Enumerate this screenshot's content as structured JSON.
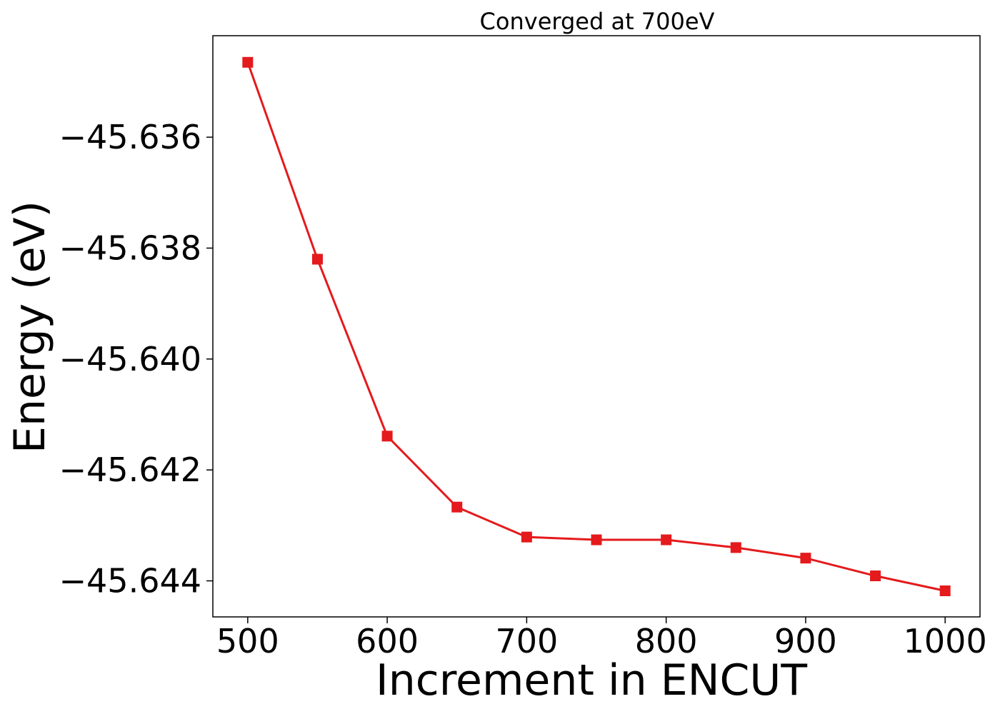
{
  "chart_data": {
    "type": "line",
    "title": "Converged at 700eV",
    "xlabel": "Increment in ENCUT",
    "ylabel": "Energy (eV)",
    "x": [
      500,
      550,
      600,
      650,
      700,
      750,
      800,
      850,
      900,
      950,
      1000
    ],
    "series": [
      {
        "values": [
          -45.63465,
          -45.6382,
          -45.64139,
          -45.64267,
          -45.64321,
          -45.64326,
          -45.64326,
          -45.6434,
          -45.64359,
          -45.64391,
          -45.64418
        ]
      }
    ],
    "x_ticks": [
      500,
      600,
      700,
      800,
      900,
      1000
    ],
    "x_tick_labels": [
      "500",
      "600",
      "700",
      "800",
      "900",
      "1000"
    ],
    "y_ticks": [
      -45.636,
      -45.638,
      -45.64,
      -45.642,
      -45.644
    ],
    "y_tick_labels": [
      "−45.636",
      "−45.638",
      "−45.640",
      "−45.642",
      "−45.644"
    ],
    "xlim": [
      475,
      1025
    ],
    "ylim": [
      -45.64465,
      -45.63417
    ],
    "grid": false,
    "marker": "square",
    "colors": {
      "series": "#e41a1c",
      "axes": "#000000",
      "background": "#ffffff"
    }
  }
}
